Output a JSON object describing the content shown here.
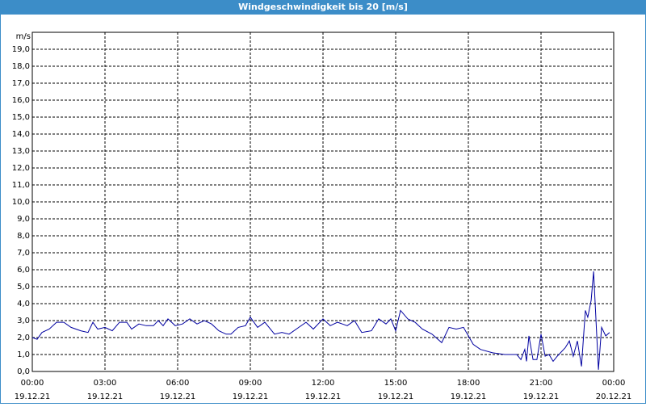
{
  "chart_data": {
    "type": "line",
    "title": "Windgeschwindigkeit bis 20 [m/s]",
    "y_unit": "m/s",
    "xlim": [
      0,
      24
    ],
    "ylim": [
      0,
      20
    ],
    "xticks": [
      {
        "value": 0,
        "label": "00:00"
      },
      {
        "value": 3,
        "label": "03:00"
      },
      {
        "value": 6,
        "label": "06:00"
      },
      {
        "value": 9,
        "label": "09:00"
      },
      {
        "value": 12,
        "label": "12:00"
      },
      {
        "value": 15,
        "label": "15:00"
      },
      {
        "value": 18,
        "label": "18:00"
      },
      {
        "value": 21,
        "label": "21:00"
      },
      {
        "value": 24,
        "label": "00:00"
      }
    ],
    "xtick_dates": [
      "19.12.21",
      "19.12.21",
      "19.12.21",
      "19.12.21",
      "19.12.21",
      "19.12.21",
      "19.12.21",
      "19.12.21",
      "20.12.21"
    ],
    "yticks": [
      {
        "value": 0,
        "label": "0,0"
      },
      {
        "value": 1,
        "label": "1,0"
      },
      {
        "value": 2,
        "label": "2,0"
      },
      {
        "value": 3,
        "label": "3,0"
      },
      {
        "value": 4,
        "label": "4,0"
      },
      {
        "value": 5,
        "label": "5,0"
      },
      {
        "value": 6,
        "label": "6,0"
      },
      {
        "value": 7,
        "label": "7,0"
      },
      {
        "value": 8,
        "label": "8,0"
      },
      {
        "value": 9,
        "label": "9,0"
      },
      {
        "value": 10,
        "label": "10,0"
      },
      {
        "value": 11,
        "label": "11,0"
      },
      {
        "value": 12,
        "label": "12,0"
      },
      {
        "value": 13,
        "label": "13,0"
      },
      {
        "value": 14,
        "label": "14,0"
      },
      {
        "value": 15,
        "label": "15,0"
      },
      {
        "value": 16,
        "label": "16,0"
      },
      {
        "value": 17,
        "label": "17,0"
      },
      {
        "value": 18,
        "label": "18,0"
      },
      {
        "value": 19,
        "label": "19,0"
      }
    ],
    "grid": true,
    "x": [
      0,
      0.2,
      0.4,
      0.7,
      1.0,
      1.3,
      1.6,
      2.0,
      2.3,
      2.5,
      2.7,
      3.0,
      3.3,
      3.6,
      3.9,
      4.1,
      4.4,
      4.7,
      5.0,
      5.2,
      5.4,
      5.6,
      5.9,
      6.2,
      6.5,
      6.8,
      7.1,
      7.4,
      7.7,
      8.0,
      8.2,
      8.5,
      8.8,
      9.0,
      9.3,
      9.6,
      10.0,
      10.3,
      10.6,
      11.0,
      11.3,
      11.6,
      12.0,
      12.3,
      12.6,
      12.8,
      13.0,
      13.3,
      13.6,
      14.0,
      14.3,
      14.6,
      14.8,
      15.0,
      15.2,
      15.5,
      15.8,
      16.1,
      16.5,
      16.9,
      17.2,
      17.5,
      17.8,
      18.0,
      18.2,
      18.5,
      19.0,
      19.5,
      20.0,
      20.17,
      20.33,
      20.4,
      20.5,
      20.67,
      20.83,
      21.0,
      21.17,
      21.33,
      21.5,
      21.67,
      22.0,
      22.17,
      22.33,
      22.5,
      22.67,
      22.83,
      22.93,
      23.07,
      23.17,
      23.27,
      23.37,
      23.5,
      23.67,
      23.83
    ],
    "series": [
      {
        "name": "Windgeschwindigkeit",
        "color": "#0000a0",
        "values": [
          2.0,
          1.9,
          2.3,
          2.5,
          2.9,
          2.9,
          2.6,
          2.4,
          2.3,
          2.9,
          2.5,
          2.6,
          2.4,
          2.9,
          2.9,
          2.5,
          2.8,
          2.7,
          2.7,
          3.0,
          2.7,
          3.1,
          2.7,
          2.8,
          3.1,
          2.8,
          3.0,
          2.8,
          2.4,
          2.2,
          2.2,
          2.6,
          2.7,
          3.2,
          2.6,
          2.9,
          2.2,
          2.3,
          2.2,
          2.6,
          2.9,
          2.5,
          3.1,
          2.7,
          2.9,
          2.8,
          2.7,
          3.0,
          2.3,
          2.4,
          3.1,
          2.8,
          3.1,
          2.4,
          3.6,
          3.1,
          2.9,
          2.5,
          2.2,
          1.7,
          2.6,
          2.5,
          2.6,
          2.1,
          1.6,
          1.3,
          1.1,
          1.0,
          1.0,
          0.7,
          1.3,
          0.6,
          2.1,
          0.7,
          0.7,
          2.2,
          0.9,
          1.0,
          0.6,
          0.9,
          1.4,
          1.8,
          0.9,
          1.8,
          0.3,
          3.6,
          3.2,
          4.2,
          5.9,
          3.0,
          0.1,
          2.6,
          2.1,
          2.3
        ]
      }
    ]
  }
}
